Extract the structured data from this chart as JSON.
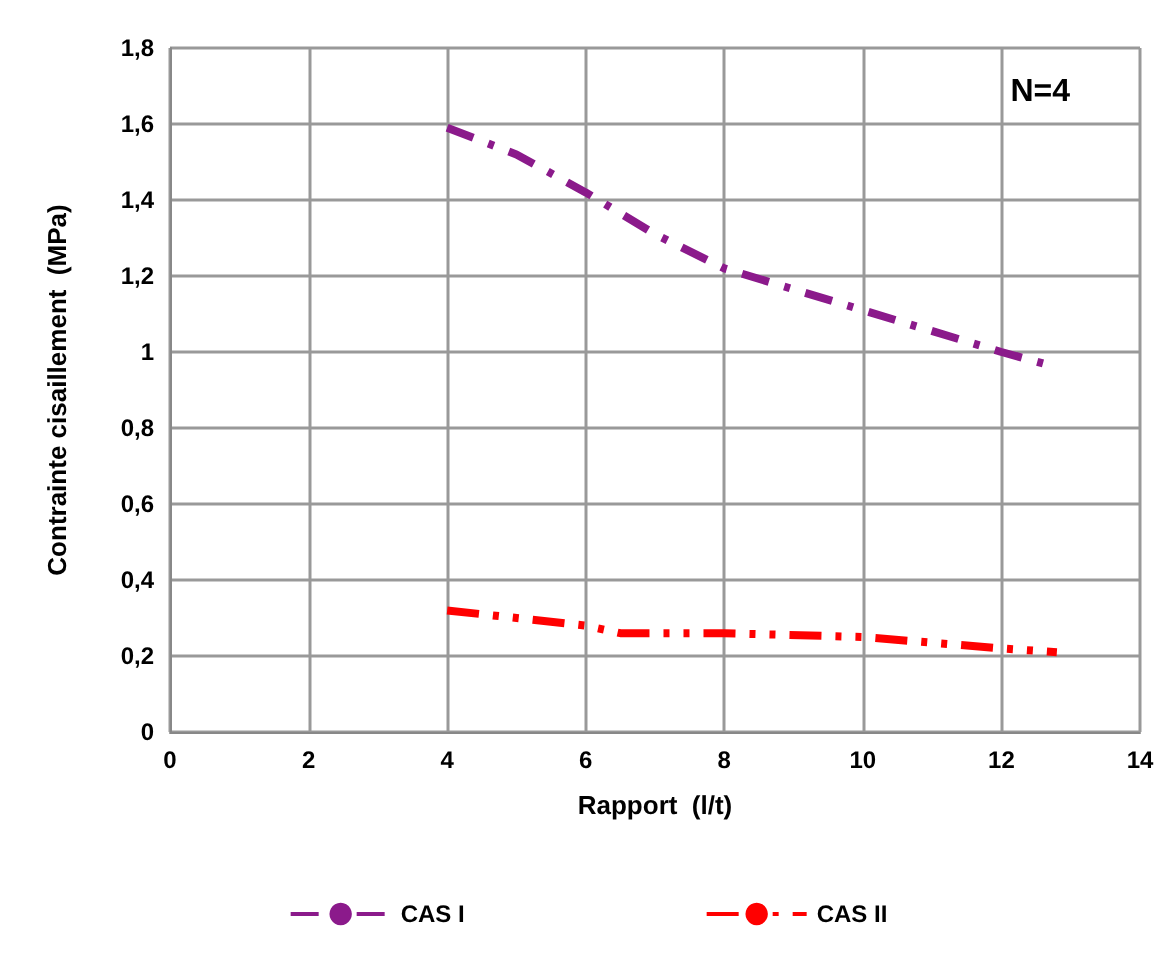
{
  "chart_data": {
    "type": "line",
    "xlabel": "Rapport  (l/t)",
    "ylabel": "Contrainte cisaillement  (MPa)",
    "annotations": [
      "N=4"
    ],
    "xlim": [
      0,
      14
    ],
    "xticks": [
      0,
      2,
      4,
      6,
      8,
      10,
      12,
      14
    ],
    "ylim": [
      0,
      1.8
    ],
    "yticks": [
      0,
      {
        "value": 0.2,
        "label": "0,2"
      },
      {
        "value": 0.4,
        "label": "0,4"
      },
      {
        "value": 0.6,
        "label": "0,6"
      },
      {
        "value": 0.8,
        "label": "0,8"
      },
      1,
      {
        "value": 1.2,
        "label": "1,2"
      },
      {
        "value": 1.4,
        "label": "1,4"
      },
      {
        "value": 1.6,
        "label": "1,6"
      },
      {
        "value": 1.8,
        "label": "1,8"
      }
    ],
    "grid": true,
    "legend": "bottom",
    "marker": "none",
    "series": [
      {
        "name": "CAS I",
        "color": "#8b1a8b",
        "line_style": "dashdot",
        "x": [
          4,
          5,
          6,
          7,
          8,
          10,
          12,
          12.6
        ],
        "values": [
          1.59,
          1.52,
          1.42,
          1.31,
          1.22,
          1.11,
          1.0,
          0.97
        ]
      },
      {
        "name": "CAS II",
        "color": "#ff0000",
        "line_style": "dashdotdot",
        "x": [
          4,
          6,
          6.5,
          8,
          10,
          12,
          12.8
        ],
        "values": [
          0.32,
          0.28,
          0.26,
          0.26,
          0.25,
          0.22,
          0.21
        ]
      }
    ]
  }
}
